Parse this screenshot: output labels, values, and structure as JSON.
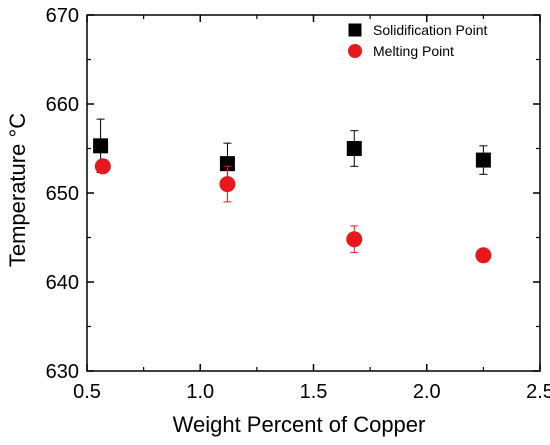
{
  "chart_data": {
    "type": "scatter",
    "xlabel": "Weight Percent of Copper",
    "ylabel": "Temperature °C",
    "xlim": [
      0.5,
      2.5
    ],
    "ylim": [
      630,
      670
    ],
    "x_ticks": [
      "0.5",
      "1.0",
      "1.5",
      "2.0",
      "2.5"
    ],
    "y_ticks": [
      "630",
      "640",
      "650",
      "660",
      "670"
    ],
    "legend_position": "top-right",
    "grid": false,
    "series": [
      {
        "name": "Solidification Point",
        "marker": "square",
        "color": "#000000",
        "points": [
          {
            "x": 0.56,
            "y": 655.3,
            "err": 3.0
          },
          {
            "x": 1.12,
            "y": 653.3,
            "err": 2.3
          },
          {
            "x": 1.68,
            "y": 655.0,
            "err": 2.0
          },
          {
            "x": 2.25,
            "y": 653.7,
            "err": 1.6
          }
        ]
      },
      {
        "name": "Melting Point",
        "marker": "circle",
        "color": "#e8181a",
        "points": [
          {
            "x": 0.57,
            "y": 653.0,
            "err": 0
          },
          {
            "x": 1.12,
            "y": 651.0,
            "err": 2.0
          },
          {
            "x": 1.68,
            "y": 644.8,
            "err": 1.5
          },
          {
            "x": 2.25,
            "y": 643.0,
            "err": 0
          }
        ]
      }
    ]
  }
}
